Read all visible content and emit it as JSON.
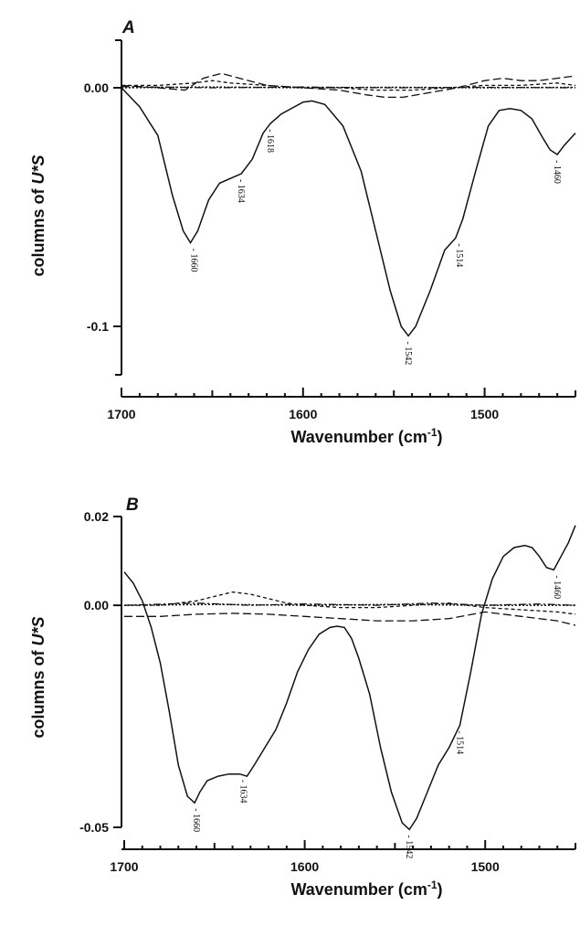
{
  "chart_data": [
    {
      "panel": "A",
      "type": "line",
      "xlabel": "Wavenumber (cm⁻¹)",
      "ylabel": "columns of U*S",
      "xlim": [
        1700,
        1450
      ],
      "ylim": [
        -0.12,
        0.02
      ],
      "yticks": [
        0.0,
        -0.1
      ],
      "ytick_labels": [
        "0.00",
        "-0.1"
      ],
      "xticks": [
        1700,
        1600,
        1500
      ],
      "xtick_labels": [
        "1700",
        "1600",
        "1500"
      ],
      "grid": false,
      "series": [
        {
          "style": "solid",
          "x": [
            1700,
            1690,
            1680,
            1672,
            1666,
            1662,
            1658,
            1652,
            1646,
            1640,
            1634,
            1628,
            1622,
            1618,
            1612,
            1600,
            1595,
            1588,
            1578,
            1568,
            1560,
            1552,
            1546,
            1542,
            1538,
            1530,
            1522,
            1516,
            1512,
            1505,
            1498,
            1492,
            1486,
            1480,
            1474,
            1468,
            1464,
            1460,
            1456,
            1450
          ],
          "y": [
            0.0,
            -0.008,
            -0.02,
            -0.045,
            -0.06,
            -0.065,
            -0.06,
            -0.047,
            -0.04,
            -0.038,
            -0.036,
            -0.03,
            -0.019,
            -0.015,
            -0.011,
            -0.006,
            -0.0055,
            -0.007,
            -0.016,
            -0.035,
            -0.06,
            -0.085,
            -0.1,
            -0.104,
            -0.1,
            -0.085,
            -0.068,
            -0.063,
            -0.055,
            -0.035,
            -0.016,
            -0.0095,
            -0.0087,
            -0.0095,
            -0.013,
            -0.021,
            -0.026,
            -0.028,
            -0.024,
            -0.019
          ]
        },
        {
          "style": "dashed-long",
          "x": [
            1700,
            1680,
            1665,
            1655,
            1645,
            1635,
            1620,
            1600,
            1580,
            1565,
            1555,
            1545,
            1530,
            1515,
            1500,
            1490,
            1480,
            1470,
            1460,
            1450
          ],
          "y": [
            0.001,
            0.0,
            -0.001,
            0.004,
            0.006,
            0.004,
            0.001,
            0.0,
            -0.001,
            -0.003,
            -0.004,
            -0.004,
            -0.002,
            0.0,
            0.003,
            0.004,
            0.003,
            0.003,
            0.004,
            0.005
          ]
        },
        {
          "style": "dashed-short",
          "x": [
            1700,
            1680,
            1660,
            1650,
            1640,
            1620,
            1600,
            1580,
            1560,
            1540,
            1520,
            1500,
            1480,
            1460,
            1450
          ],
          "y": [
            0.001,
            0.001,
            0.002,
            0.003,
            0.002,
            0.001,
            0.0,
            0.0,
            -0.001,
            -0.001,
            0.0,
            0.001,
            0.001,
            0.002,
            0.001
          ]
        },
        {
          "style": "dash-dot",
          "x": [
            1700,
            1650,
            1600,
            1550,
            1500,
            1450
          ],
          "y": [
            0.0005,
            0.0,
            0.0003,
            0.0,
            0.0002,
            0.0
          ]
        },
        {
          "style": "dotted",
          "x": [
            1700,
            1650,
            1600,
            1550,
            1500,
            1450
          ],
          "y": [
            0.0,
            0.0003,
            0.0,
            0.0002,
            0.0,
            0.0002
          ]
        }
      ],
      "peak_labels": [
        {
          "x": 1660,
          "y": -0.065,
          "text": "- 1660"
        },
        {
          "x": 1634,
          "y": -0.036,
          "text": "- 1634"
        },
        {
          "x": 1618,
          "y": -0.015,
          "text": "- 1618"
        },
        {
          "x": 1542,
          "y": -0.104,
          "text": "- 1542"
        },
        {
          "x": 1514,
          "y": -0.063,
          "text": "- 1514"
        },
        {
          "x": 1460,
          "y": -0.028,
          "text": "- 1460"
        }
      ]
    },
    {
      "panel": "B",
      "type": "line",
      "xlabel": "Wavenumber (cm⁻¹)",
      "ylabel": "columns of U*S",
      "xlim": [
        1700,
        1450
      ],
      "ylim": [
        -0.05,
        0.02
      ],
      "yticks": [
        0.02,
        0.0,
        -0.05
      ],
      "ytick_labels": [
        "0.02",
        "0.00",
        "-0.05"
      ],
      "xticks": [
        1700,
        1600,
        1500
      ],
      "xtick_labels": [
        "1700",
        "1600",
        "1500"
      ],
      "grid": false,
      "series": [
        {
          "style": "solid",
          "x": [
            1700,
            1695,
            1690,
            1685,
            1680,
            1675,
            1670,
            1665,
            1661,
            1658,
            1654,
            1648,
            1642,
            1636,
            1632,
            1628,
            1622,
            1616,
            1610,
            1604,
            1598,
            1592,
            1586,
            1582,
            1578,
            1574,
            1570,
            1564,
            1558,
            1552,
            1546,
            1542,
            1538,
            1532,
            1526,
            1520,
            1514,
            1508,
            1502,
            1496,
            1490,
            1484,
            1478,
            1474,
            1470,
            1466,
            1462,
            1458,
            1454,
            1450
          ],
          "y": [
            0.0075,
            0.005,
            0.001,
            -0.005,
            -0.013,
            -0.024,
            -0.036,
            -0.043,
            -0.0445,
            -0.042,
            -0.0395,
            -0.0385,
            -0.038,
            -0.038,
            -0.0385,
            -0.036,
            -0.032,
            -0.028,
            -0.022,
            -0.015,
            -0.01,
            -0.0065,
            -0.005,
            -0.0047,
            -0.005,
            -0.0075,
            -0.012,
            -0.02,
            -0.032,
            -0.042,
            -0.049,
            -0.0505,
            -0.048,
            -0.042,
            -0.036,
            -0.032,
            -0.027,
            -0.015,
            -0.002,
            0.006,
            0.011,
            0.013,
            0.0135,
            0.013,
            0.011,
            0.0085,
            0.008,
            0.011,
            0.014,
            0.018
          ]
        },
        {
          "style": "dashed-long",
          "x": [
            1700,
            1680,
            1660,
            1640,
            1620,
            1600,
            1580,
            1560,
            1540,
            1520,
            1500,
            1480,
            1460,
            1450
          ],
          "y": [
            -0.0025,
            -0.0025,
            -0.002,
            -0.0018,
            -0.002,
            -0.0025,
            -0.003,
            -0.0035,
            -0.0035,
            -0.003,
            -0.0015,
            -0.0025,
            -0.0035,
            -0.0045
          ]
        },
        {
          "style": "dashed-short",
          "x": [
            1700,
            1680,
            1660,
            1650,
            1640,
            1630,
            1620,
            1610,
            1600,
            1580,
            1560,
            1540,
            1520,
            1500,
            1480,
            1460,
            1450
          ],
          "y": [
            0.0,
            0.0,
            0.001,
            0.002,
            0.003,
            0.0025,
            0.0015,
            0.0005,
            0.0,
            -0.0005,
            -0.0005,
            0.0,
            0.0005,
            -0.0005,
            -0.001,
            -0.0015,
            -0.002
          ]
        },
        {
          "style": "dash-dot",
          "x": [
            1700,
            1660,
            1630,
            1600,
            1560,
            1530,
            1500,
            1470,
            1450
          ],
          "y": [
            0.0,
            0.0005,
            0.0,
            0.0003,
            0.0,
            0.0005,
            0.0,
            0.0003,
            0.0
          ]
        },
        {
          "style": "dotted",
          "x": [
            1700,
            1650,
            1600,
            1550,
            1500,
            1450
          ],
          "y": [
            0.0,
            0.0002,
            0.0,
            0.0002,
            0.0,
            0.0
          ]
        }
      ],
      "peak_labels": [
        {
          "x": 1660,
          "y": -0.0445,
          "text": "- 1660"
        },
        {
          "x": 1634,
          "y": -0.038,
          "text": "- 1634"
        },
        {
          "x": 1542,
          "y": -0.0505,
          "text": "- 1542"
        },
        {
          "x": 1514,
          "y": -0.027,
          "text": "- 1514"
        },
        {
          "x": 1460,
          "y": 0.008,
          "text": "- 1460"
        }
      ]
    }
  ]
}
